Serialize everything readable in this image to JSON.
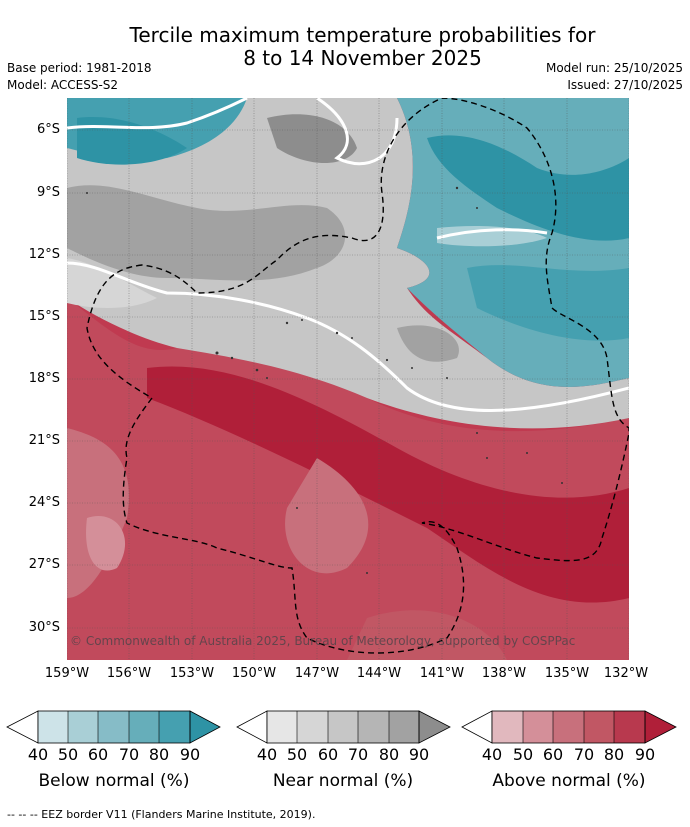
{
  "title": {
    "line1": "Tercile maximum temperature probabilities for",
    "line2": "8 to 14 November 2025"
  },
  "meta": {
    "base_period": "Base period: 1981-2018",
    "model": "Model: ACCESS-S2",
    "model_run": "Model run: 25/10/2025",
    "issued": "Issued: 27/10/2025"
  },
  "map": {
    "lat_labels": [
      "6°S",
      "9°S",
      "12°S",
      "15°S",
      "18°S",
      "21°S",
      "24°S",
      "27°S",
      "30°S"
    ],
    "lon_labels": [
      "159°W",
      "156°W",
      "153°W",
      "150°W",
      "147°W",
      "144°W",
      "141°W",
      "138°W",
      "135°W",
      "132°W"
    ],
    "copyright": "© Commonwealth of Australia 2025, Bureau of Meteorology, supported by COSPPac",
    "colors": {
      "below": [
        "#cde3e8",
        "#a9cfd6",
        "#86bcc7",
        "#66aeba",
        "#45a0b0",
        "#2e93a5"
      ],
      "near": [
        "#e6e6e6",
        "#d6d6d6",
        "#c6c6c6",
        "#b5b5b5",
        "#a2a2a2",
        "#8d8d8d"
      ],
      "above": [
        "#e1b8be",
        "#d48f99",
        "#c8707c",
        "#c15764",
        "#b8394e",
        "#b01f39"
      ]
    }
  },
  "legend": {
    "ticks": [
      "40",
      "50",
      "60",
      "70",
      "80",
      "90"
    ],
    "below_label": "Below normal (%)",
    "near_label": "Near normal (%)",
    "above_label": "Above normal (%)"
  },
  "footnote": "--  --  -- EEZ border V11 (Flanders Marine Institute, 2019)."
}
